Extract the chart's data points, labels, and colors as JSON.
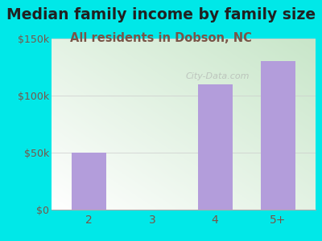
{
  "title": "Median family income by family size",
  "subtitle": "All residents in Dobson, NC",
  "categories": [
    "2",
    "3",
    "4",
    "5+"
  ],
  "values": [
    50000,
    0,
    110000,
    130000
  ],
  "bar_color": "#b39ddb",
  "background_color": "#00e8e8",
  "plot_bg_color_topleft": "#c8e6c9",
  "plot_bg_color_bottomright": "#ffffff",
  "ylim": [
    0,
    150000
  ],
  "yticks": [
    0,
    50000,
    100000,
    150000
  ],
  "ytick_labels": [
    "$0",
    "$50k",
    "$100k",
    "$150k"
  ],
  "title_color": "#212121",
  "subtitle_color": "#795548",
  "tick_color": "#795548",
  "title_fontsize": 13.5,
  "subtitle_fontsize": 10.5,
  "watermark": "City-Data.com"
}
